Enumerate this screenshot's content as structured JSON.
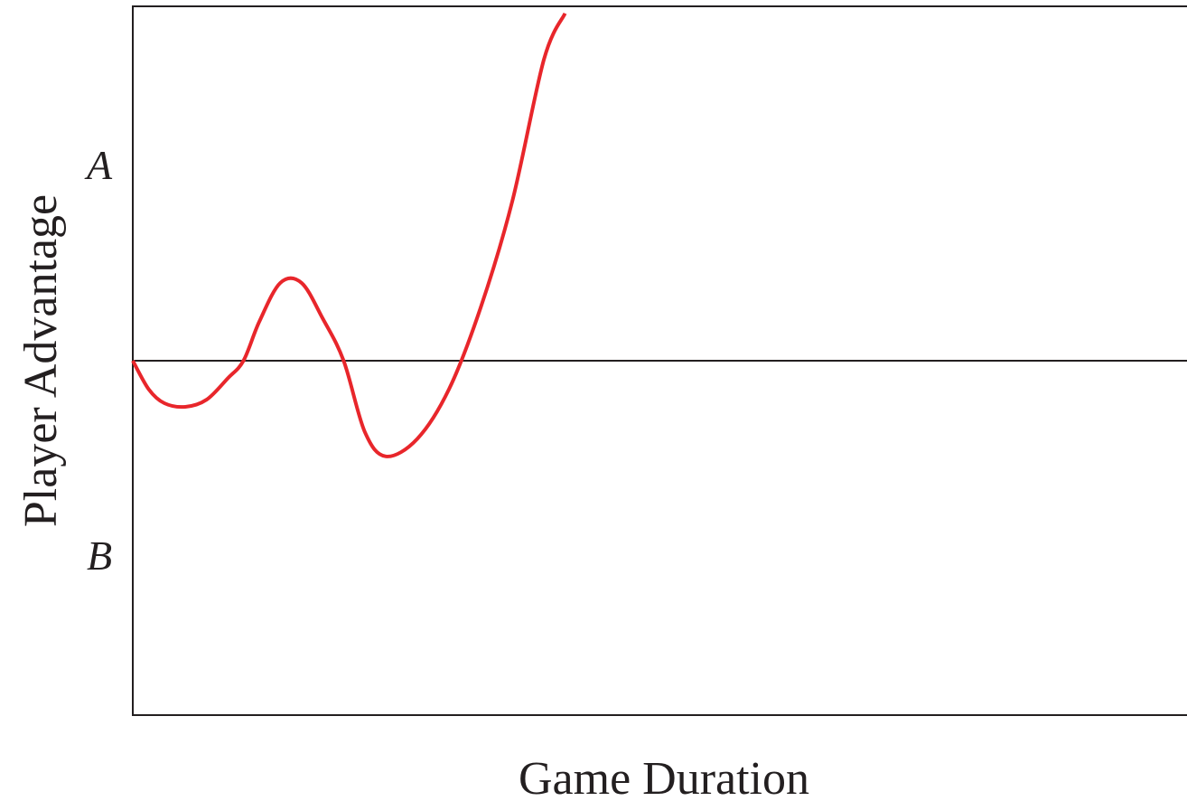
{
  "chart_data": {
    "type": "line",
    "xlabel": "Game Duration",
    "ylabel": "Player Advantage",
    "region_labels": {
      "upper": "A",
      "lower": "B"
    },
    "x_ticks": [],
    "y_ticks": [],
    "xlim": [
      0,
      10
    ],
    "ylim": [
      -10,
      10
    ],
    "baseline_y": 0,
    "grid": false,
    "legend": "none",
    "series": [
      {
        "color": "#e8262b",
        "x": [
          0,
          0.15,
          0.3,
          0.5,
          0.7,
          0.9,
          1.05,
          1.2,
          1.4,
          1.6,
          1.8,
          2.0,
          2.2,
          2.4,
          2.7,
          3.0,
          3.3,
          3.6,
          3.9,
          4.1
        ],
        "y": [
          0,
          -0.8,
          -1.2,
          -1.3,
          -1.1,
          -0.5,
          0,
          1.1,
          2.2,
          2.2,
          1.2,
          0,
          -2.0,
          -2.7,
          -2.2,
          -0.8,
          1.5,
          4.5,
          8.5,
          9.8
        ]
      }
    ]
  },
  "colors": {
    "axis": "#231f20",
    "curve": "#e8262b",
    "text": "#231f20"
  }
}
